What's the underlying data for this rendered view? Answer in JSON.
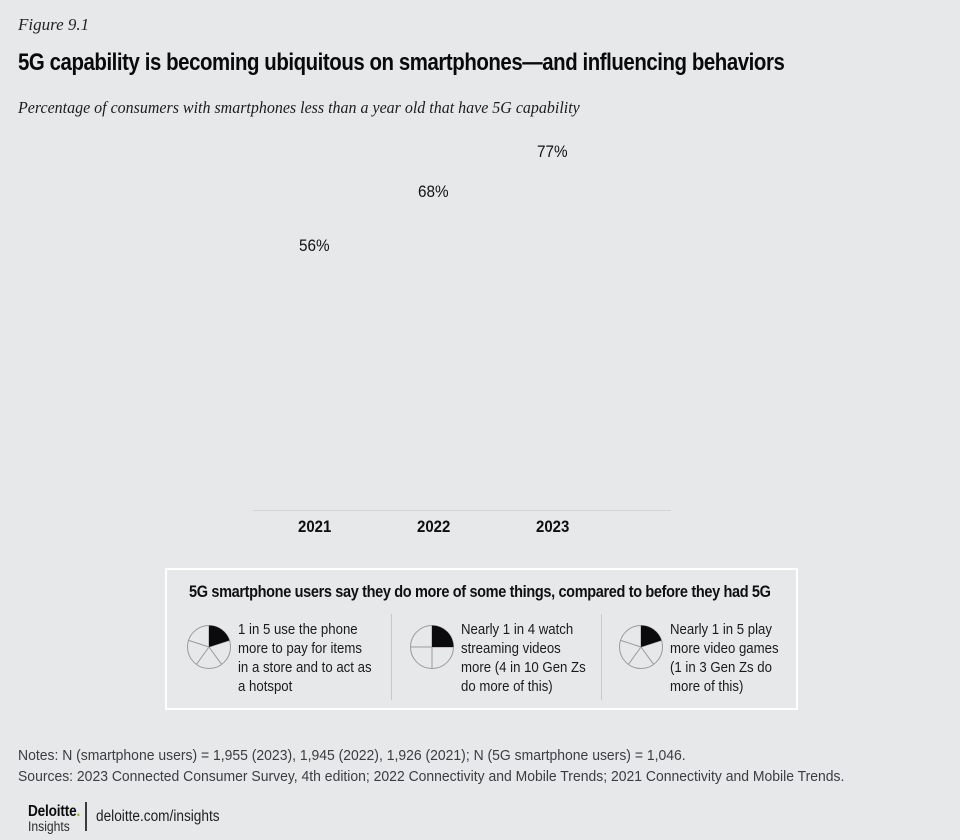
{
  "figure_label": "Figure 9.1",
  "title": "5G capability is becoming ubiquitous on smartphones—and influencing behaviors",
  "subtitle": "Percentage of consumers with smartphones less than a year old that have 5G capability",
  "chart_data": {
    "type": "bar",
    "categories": [
      "2021",
      "2022",
      "2023"
    ],
    "values": [
      56,
      68,
      77
    ],
    "value_labels": [
      "56%",
      "68%",
      "77%"
    ],
    "title": "Percentage of consumers with smartphones less than a year old that have 5G capability",
    "xlabel": "",
    "ylabel": "",
    "ylim": [
      0,
      100
    ],
    "grid": false,
    "legend": "none",
    "bar_color": "#0b0b0d",
    "axis_line_color": "#d2d3d5"
  },
  "callout": {
    "heading": "5G smartphone users say they do more of some things, compared to before they had 5G",
    "items": [
      {
        "icon": "pie-one-fifth-icon",
        "fraction": "1/5",
        "text": "1 in 5 use the phone\nmore to pay for items\nin a store and to act as\na hotspot"
      },
      {
        "icon": "pie-one-quarter-icon",
        "fraction": "1/4",
        "text": "Nearly 1 in 4 watch\nstreaming videos\nmore (4 in 10 Gen Zs\ndo more of this)"
      },
      {
        "icon": "pie-one-fifth-icon",
        "fraction": "1/5",
        "text": "Nearly 1 in 5 play\nmore video games\n(1 in 3 Gen Zs do\nmore of this)"
      }
    ]
  },
  "notes": "Notes: N (smartphone users) = 1,955 (2023), 1,945 (2022), 1,926 (2021); N (5G smartphone users) = 1,046.",
  "sources": "Sources: 2023 Connected Consumer Survey, 4th edition; 2022 Connectivity and Mobile Trends; 2021 Connectivity and Mobile Trends.",
  "footer": {
    "brand": "Deloitte",
    "brand_dot": ".",
    "brand_sub": "Insights",
    "url": "deloitte.com/insights"
  },
  "colors": {
    "background": "#e7e8ea",
    "bar": "#0b0b0d",
    "accent_green": "#86BC25",
    "box_border": "#ffffff"
  }
}
